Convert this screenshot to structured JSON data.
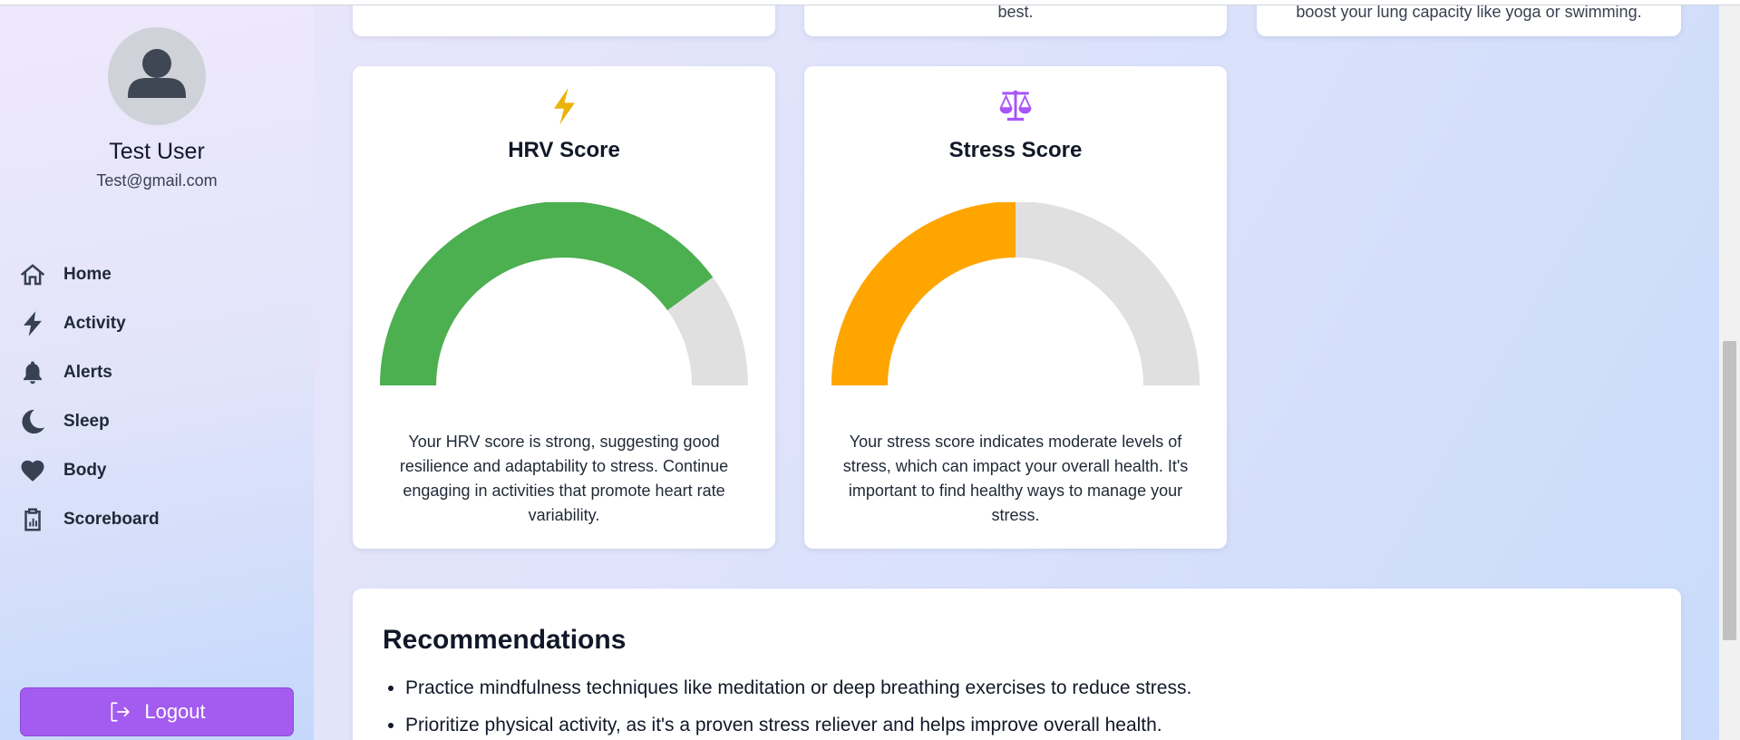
{
  "user": {
    "name": "Test User",
    "email": "Test@gmail.com",
    "avatar_icon": "user-avatar-icon"
  },
  "nav": {
    "items": [
      {
        "label": "Home",
        "icon": "home-icon"
      },
      {
        "label": "Activity",
        "icon": "bolt-icon"
      },
      {
        "label": "Alerts",
        "icon": "bell-icon"
      },
      {
        "label": "Sleep",
        "icon": "moon-icon"
      },
      {
        "label": "Body",
        "icon": "heart-icon"
      },
      {
        "label": "Scoreboard",
        "icon": "clipboard-icon"
      }
    ],
    "logout_label": "Logout"
  },
  "top_cards": [
    {
      "text": "best."
    },
    {
      "text": "boost your lung capacity like yoga or swimming."
    }
  ],
  "scores": [
    {
      "title": "HRV Score",
      "icon": "bolt-icon",
      "icon_color": "#eab308",
      "gauge_fill": 0.8,
      "gauge_color": "#4caf50",
      "track_color": "#e0e0e0",
      "description": "Your HRV score is strong, suggesting good resilience and adaptability to stress. Continue engaging in activities that promote heart rate variability."
    },
    {
      "title": "Stress Score",
      "icon": "scale-icon",
      "icon_color": "#a855f7",
      "gauge_fill": 0.5,
      "gauge_color": "#ffa500",
      "track_color": "#e0e0e0",
      "description": "Your stress score indicates moderate levels of stress, which can impact your overall health. It's important to find healthy ways to manage your stress."
    }
  ],
  "recommendations": {
    "title": "Recommendations",
    "items": [
      "Practice mindfulness techniques like meditation or deep breathing exercises to reduce stress.",
      "Prioritize physical activity, as it's a proven stress reliever and helps improve overall health."
    ]
  },
  "colors": {
    "accent": "#a35bf0",
    "nav_icon": "#374151"
  }
}
